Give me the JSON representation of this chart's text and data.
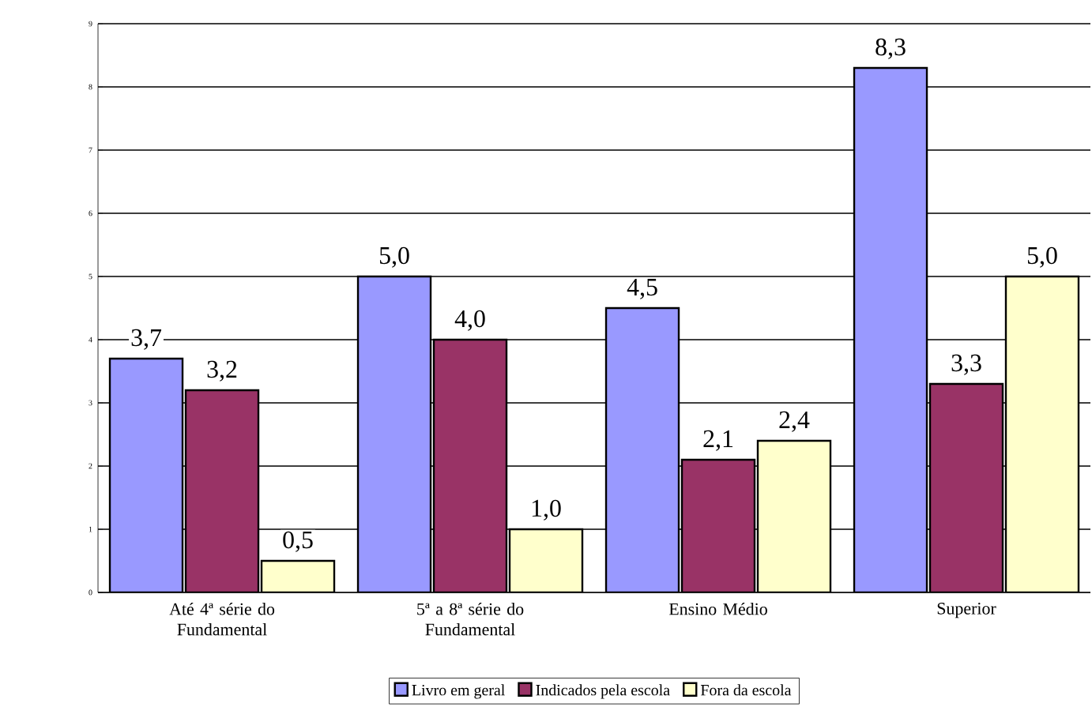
{
  "chart_data": {
    "type": "bar",
    "categories": [
      "Até 4ª série do Fundamental",
      "5ª a 8ª série do Fundamental",
      "Ensino Médio",
      "Superior"
    ],
    "series": [
      {
        "name": "Livro em geral",
        "color": "#9999ff",
        "values": [
          3.7,
          5.0,
          4.5,
          8.3
        ],
        "value_labels": [
          "3,7",
          "5,0",
          "4,5",
          "8,3"
        ]
      },
      {
        "name": "Indicados pela escola",
        "color": "#993366",
        "values": [
          3.2,
          4.0,
          2.1,
          3.3
        ],
        "value_labels": [
          "3,2",
          "4,0",
          "2,1",
          "3,3"
        ]
      },
      {
        "name": "Fora da escola",
        "color": "#ffffcc",
        "values": [
          0.5,
          1.0,
          2.4,
          5.0
        ],
        "value_labels": [
          "0,5",
          "1,0",
          "2,4",
          "5,0"
        ]
      }
    ],
    "ylim": [
      0,
      9
    ],
    "yticks": [
      0,
      1,
      2,
      3,
      4,
      5,
      6,
      7,
      8,
      9
    ],
    "grid": "y",
    "legend": "bottom"
  }
}
